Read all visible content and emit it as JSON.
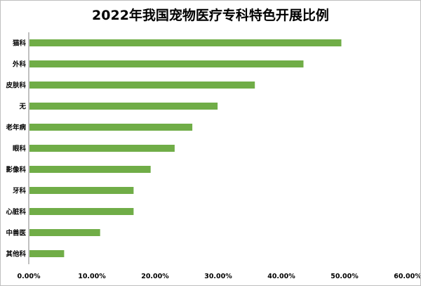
{
  "chart_data": {
    "type": "bar",
    "orientation": "horizontal",
    "title": "2022年我国宠物医疗专科特色开展比例",
    "categories": [
      "猫科",
      "外科",
      "皮肤科",
      "无",
      "老年病",
      "眼科",
      "影像科",
      "牙科",
      "心脏科",
      "中兽医",
      "其他科"
    ],
    "values": [
      0.495,
      0.435,
      0.358,
      0.299,
      0.259,
      0.231,
      0.193,
      0.166,
      0.166,
      0.113,
      0.056
    ],
    "xlim": [
      0,
      0.6
    ],
    "xticks": [
      "0.00%",
      "10.00%",
      "20.00%",
      "30.00%",
      "40.00%",
      "50.00%",
      "60.00%"
    ],
    "xlabel": "",
    "ylabel": "",
    "grid": false,
    "legend": "none",
    "bar_color": "#70ad47"
  }
}
